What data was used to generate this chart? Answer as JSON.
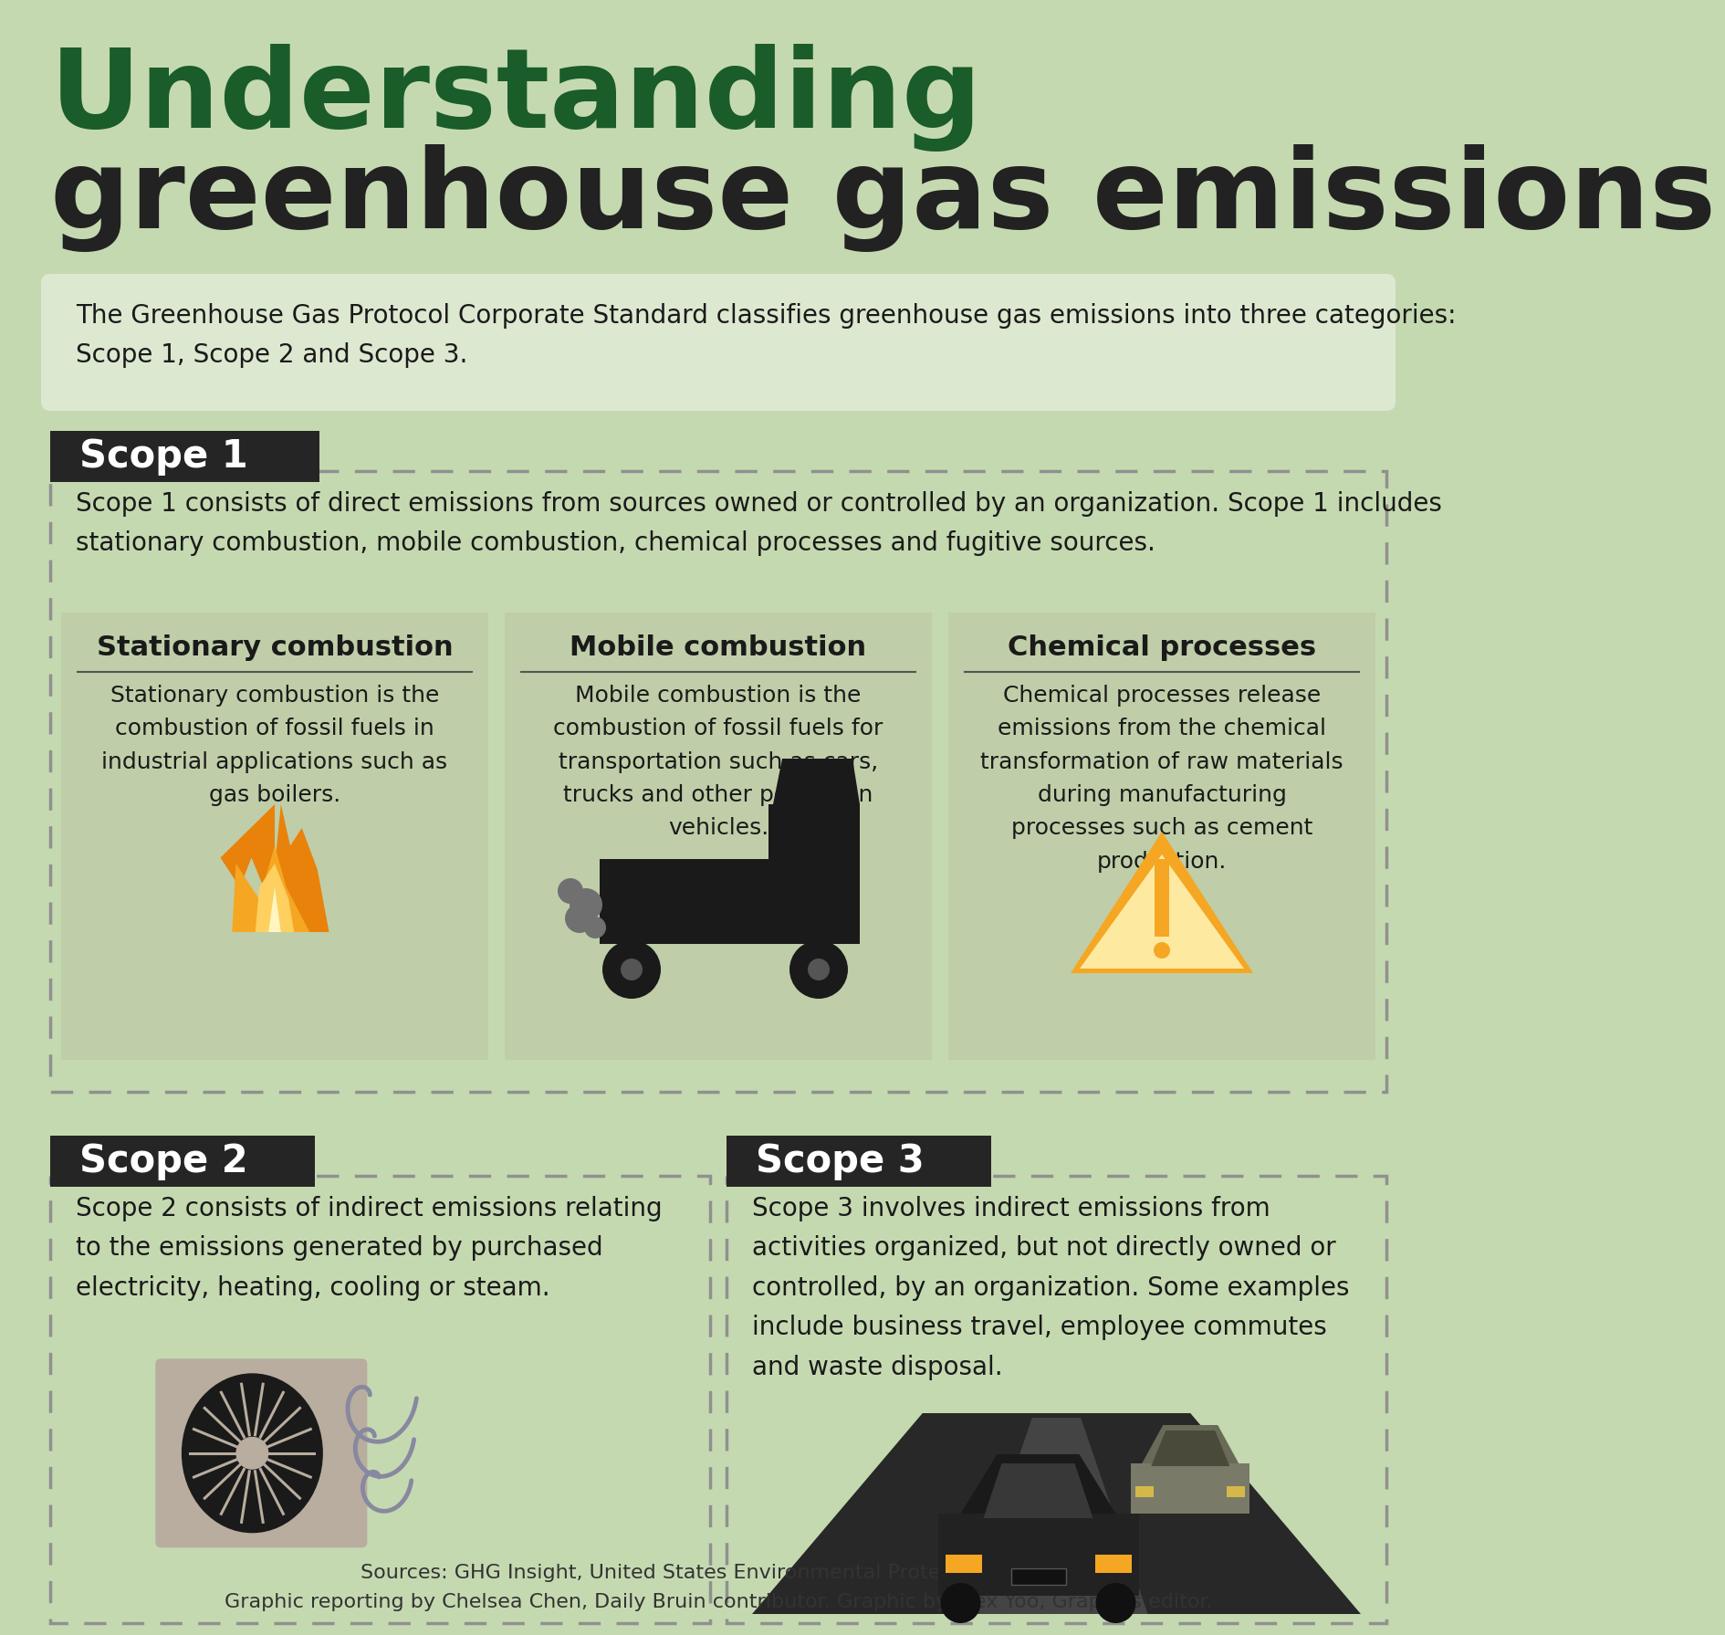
{
  "bg_color": "#c5d9b0",
  "title_line1": "Understanding",
  "title_line2": "greenhouse gas emissions",
  "title_color": "#1a5c2a",
  "title2_color": "#222222",
  "intro_text": "The Greenhouse Gas Protocol Corporate Standard classifies greenhouse gas emissions into three categories:\nScope 1, Scope 2 and Scope 3.",
  "intro_bg": "#dde8d0",
  "scope1_label": "Scope 1",
  "scope1_text": "Scope 1 consists of direct emissions from sources owned or controlled by an organization. Scope 1 includes\nstationary combustion, mobile combustion, chemical processes and fugitive sources.",
  "sub1_title": "Stationary combustion",
  "sub1_text": "Stationary combustion is the\ncombustion of fossil fuels in\nindustrial applications such as\ngas boilers.",
  "sub2_title": "Mobile combustion",
  "sub2_text": "Mobile combustion is the\ncombustion of fossil fuels for\ntransportation such as cars,\ntrucks and other petrol-run\nvehicles.",
  "sub3_title": "Chemical processes",
  "sub3_text": "Chemical processes release\nemissions from the chemical\ntransformation of raw materials\nduring manufacturing\nprocesses such as cement\nproduction.",
  "scope2_label": "Scope 2",
  "scope2_text": "Scope 2 consists of indirect emissions relating\nto the emissions generated by purchased\nelectricity, heating, cooling or steam.",
  "scope3_label": "Scope 3",
  "scope3_text": "Scope 3 involves indirect emissions from\nactivities organized, but not directly owned or\ncontrolled, by an organization. Some examples\ninclude business travel, employee commutes\nand waste disposal.",
  "footer_text": "Sources: GHG Insight, United States Environmental Protection Agency.\nGraphic reporting by Chelsea Chen, Daily Bruin contributor. Graphic by Alex Yoo, Graphics editor.",
  "dark_header_bg": "#252525",
  "header_text_color": "#ffffff",
  "sub_bg": "#bfcea8",
  "body_text_color": "#1a1a1a",
  "orange_color": "#f5a623"
}
